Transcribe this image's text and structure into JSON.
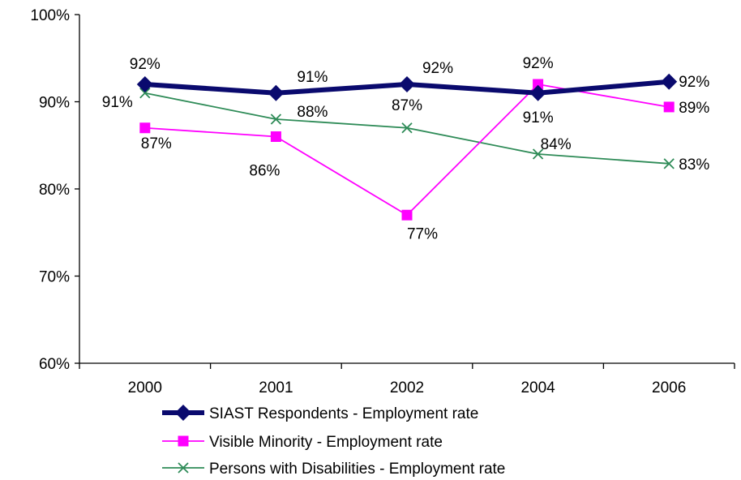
{
  "chart_data": {
    "type": "line",
    "categories": [
      "2000",
      "2001",
      "2002",
      "2004",
      "2006"
    ],
    "ylim": [
      0.6,
      1.0
    ],
    "yticks": [
      {
        "value": 0.6,
        "label": "60%"
      },
      {
        "value": 0.7,
        "label": "70%"
      },
      {
        "value": 0.8,
        "label": "80%"
      },
      {
        "value": 0.9,
        "label": "90%"
      },
      {
        "value": 1.0,
        "label": "100%"
      }
    ],
    "grid": false,
    "legend_position": "bottom",
    "series": [
      {
        "name": "SIAST Respondents - Employment rate",
        "values": [
          0.92,
          0.91,
          0.92,
          0.91,
          0.923
        ],
        "labels": [
          "92%",
          "91%",
          "92%",
          "91%",
          "92%"
        ],
        "color": "#0a0a6e",
        "marker": "diamond"
      },
      {
        "name": "Visible Minority - Employment rate",
        "values": [
          0.87,
          0.86,
          0.77,
          0.92,
          0.894
        ],
        "labels": [
          "87%",
          "86%",
          "77%",
          "92%",
          "89%"
        ],
        "color": "#ff00ff",
        "marker": "square"
      },
      {
        "name": "Persons with Disabilities - Employment rate",
        "values": [
          0.91,
          0.88,
          0.87,
          0.84,
          0.829
        ],
        "labels": [
          "91%",
          "88%",
          "87%",
          "84%",
          "83%"
        ],
        "color": "#2e8b57",
        "marker": "x"
      }
    ]
  }
}
